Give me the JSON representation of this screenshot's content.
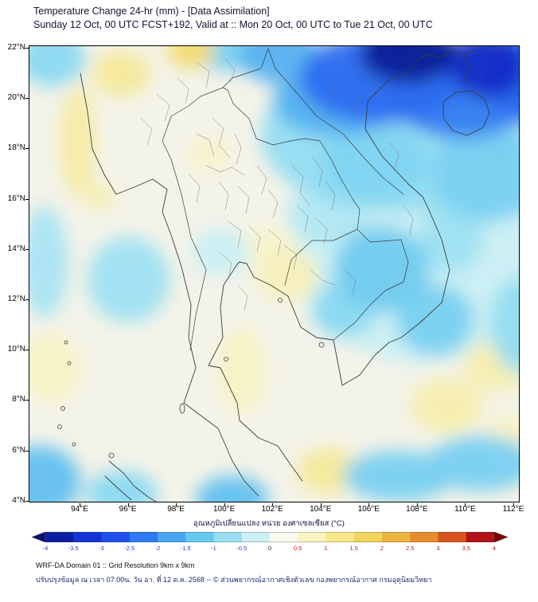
{
  "header": {
    "title": "Temperature Change 24-hr (mm) - [Data Assimilation]",
    "subtitle": "Sunday 12 Oct, 00 UTC FCST+192, Valid at :: Mon 20 Oct, 00 UTC to Tue 21 Oct, 00 UTC"
  },
  "map": {
    "y_ticks": [
      "22°N",
      "20°N",
      "18°N",
      "16°N",
      "14°N",
      "12°N",
      "10°N",
      "8°N",
      "6°N",
      "4°N"
    ],
    "x_ticks": [
      "94°E",
      "96°E",
      "98°E",
      "100°E",
      "102°E",
      "104°E",
      "106°E",
      "108°E",
      "110°E",
      "112°E"
    ]
  },
  "colorbar": {
    "label": "อุณหภูมิเปลี่ยนแปลง หน่วย องศาเซลเซียส (°C)",
    "units": "°C",
    "ticks": [
      "-4",
      "-3.5",
      "-3",
      "-2.5",
      "-2",
      "-1.5",
      "-1",
      "-0.5",
      "0",
      "0.5",
      "1",
      "1.5",
      "2",
      "2.5",
      "3",
      "3.5",
      "4"
    ],
    "segment_colors": [
      "#0b1fa0",
      "#1433d6",
      "#1e50ec",
      "#2f79f2",
      "#46a6f2",
      "#68c8f0",
      "#97def2",
      "#cdf0f5",
      "#fbfaf0",
      "#faf3c2",
      "#f7e88e",
      "#f2d45e",
      "#eeb440",
      "#e88c2c",
      "#d9541e",
      "#b21218"
    ],
    "arrow_left_color": "#060e70",
    "arrow_right_color": "#7f0000",
    "negative_label_color": "#2038c8",
    "zero_label_color": "#222222",
    "positive_label_color": "#c22018"
  },
  "footer": {
    "line1": "WRF-DA Domain 01 :: Grid Resolution 9km x 9km",
    "line2": "ปรับปรุงข้อมูล ณ เวลา 07:00น. วัน อา. ที่ 12 ต.ค. 2568 -- © ส่วนพยากรณ์อากาศเชิงตัวเลข กองพยากรณ์อากาศ กรมอุตุนิยมวิทยา"
  },
  "chart_data": {
    "type": "heatmap",
    "title": "Temperature Change 24-hr (mm) - [Data Assimilation]",
    "subtitle": "Sunday 12 Oct, 00 UTC FCST+192, Valid at :: Mon 20 Oct, 00 UTC to Tue 21 Oct, 00 UTC",
    "variable": "24-hr temperature change (°C)",
    "x_ticks_deg_east": [
      94,
      96,
      98,
      100,
      102,
      104,
      106,
      108,
      110,
      112
    ],
    "y_ticks_deg_north": [
      22,
      20,
      18,
      16,
      14,
      12,
      10,
      8,
      6,
      4
    ],
    "x_range_deg_east": [
      91.9,
      112.2
    ],
    "y_range_deg_north": [
      4.0,
      22.1
    ],
    "grid": false,
    "legend_position": "bottom",
    "colorbar": {
      "min": -4,
      "max": 4,
      "tick_step": 0.5,
      "scale_stops": [
        [
          -4,
          "#0a1e96"
        ],
        [
          -3.5,
          "#1330d2"
        ],
        [
          -3,
          "#1e4ae8"
        ],
        [
          -2.5,
          "#2f74f2"
        ],
        [
          -2,
          "#47a3f2"
        ],
        [
          -1.5,
          "#67c7f0"
        ],
        [
          -1,
          "#93ddf2"
        ],
        [
          -0.5,
          "#c9eff4"
        ],
        [
          0,
          "#f5f4ea"
        ],
        [
          0.5,
          "#f8f2c4"
        ],
        [
          1,
          "#f6e78e"
        ],
        [
          1.5,
          "#f1d35e"
        ],
        [
          2,
          "#edb442"
        ],
        [
          3,
          "#e4882a"
        ],
        [
          4,
          "#b01218"
        ]
      ]
    },
    "features_columns": [
      "lon_e",
      "lat_n",
      "rx_deg",
      "ry_deg",
      "delta_c"
    ],
    "features": [
      [
        106.5,
        20.8,
        3.4,
        1.8,
        -2.6
      ],
      [
        109.8,
        20.3,
        3.0,
        1.9,
        -2.4
      ],
      [
        107.6,
        21.8,
        2.0,
        1.2,
        -4.0
      ],
      [
        110.9,
        21.3,
        1.6,
        1.3,
        -3.6
      ],
      [
        112.4,
        20.8,
        1.6,
        1.8,
        -2.6
      ],
      [
        104.6,
        19.9,
        2.6,
        1.4,
        -1.8
      ],
      [
        102.3,
        21.7,
        1.7,
        1.1,
        -1.8
      ],
      [
        100.2,
        21.9,
        1.4,
        0.8,
        -1.3
      ],
      [
        92.8,
        21.6,
        1.4,
        1.1,
        -1.1
      ],
      [
        107.0,
        18.5,
        5.5,
        3.0,
        -1.0
      ],
      [
        108.0,
        14.0,
        5.0,
        4.5,
        -0.5
      ],
      [
        106.2,
        17.4,
        2.2,
        1.5,
        -1.2
      ],
      [
        110.9,
        17.0,
        2.3,
        1.9,
        -1.3
      ],
      [
        106.5,
        13.2,
        2.0,
        1.7,
        -1.4
      ],
      [
        104.9,
        11.6,
        1.3,
        1.1,
        -1.1
      ],
      [
        108.7,
        11.2,
        1.6,
        1.4,
        -1.3
      ],
      [
        112.3,
        11.0,
        1.3,
        1.9,
        -1.0
      ],
      [
        96.0,
        12.8,
        1.7,
        1.7,
        -0.9
      ],
      [
        92.5,
        13.5,
        1.0,
        2.2,
        -0.8
      ],
      [
        99.8,
        13.9,
        1.2,
        0.9,
        -0.5
      ],
      [
        104.3,
        15.4,
        1.7,
        1.2,
        -0.7
      ],
      [
        109.4,
        14.6,
        1.3,
        1.5,
        -0.9
      ],
      [
        92.3,
        4.8,
        1.7,
        1.4,
        -1.6
      ],
      [
        95.7,
        4.3,
        1.5,
        0.9,
        -1.1
      ],
      [
        100.3,
        4.1,
        1.5,
        0.9,
        -1.6
      ],
      [
        107.2,
        5.0,
        2.3,
        1.0,
        -1.3
      ],
      [
        110.6,
        5.5,
        2.2,
        1.1,
        -1.3
      ],
      [
        93.9,
        18.3,
        0.75,
        2.2,
        0.8
      ],
      [
        95.7,
        21.0,
        1.2,
        0.9,
        0.9
      ],
      [
        98.6,
        22.0,
        1.0,
        0.8,
        1.3
      ],
      [
        94.8,
        16.1,
        0.6,
        0.5,
        0.7
      ],
      [
        102.6,
        13.0,
        1.3,
        1.0,
        0.6
      ],
      [
        101.8,
        14.2,
        1.1,
        0.8,
        0.35
      ],
      [
        100.7,
        9.2,
        1.0,
        1.7,
        0.5
      ],
      [
        92.8,
        9.3,
        1.2,
        1.4,
        0.5
      ],
      [
        104.3,
        5.2,
        1.3,
        0.9,
        0.9
      ],
      [
        109.2,
        7.8,
        1.5,
        1.1,
        0.7
      ],
      [
        111.3,
        9.4,
        1.4,
        1.0,
        0.7
      ],
      [
        111.9,
        6.6,
        1.1,
        0.8,
        0.5
      ],
      [
        99.3,
        17.8,
        0.9,
        0.7,
        0.4
      ]
    ]
  }
}
